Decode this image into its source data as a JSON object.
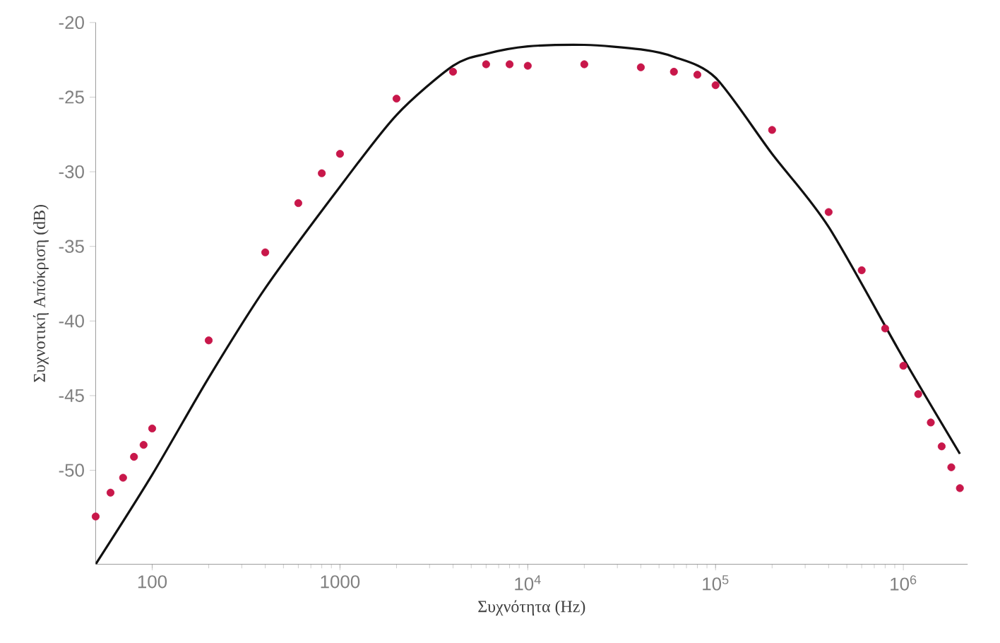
{
  "chart_data": {
    "type": "scatter",
    "xlabel": "Συχνότητα (Hz)",
    "ylabel": "Συχνοτική Απόκριση (dB)",
    "log": "x",
    "xlim": [
      50,
      2200000
    ],
    "ylim": [
      -56.3,
      -20
    ],
    "xticks": [
      100,
      1000,
      {
        "value": 10000,
        "label": "10$^{4}$"
      },
      {
        "value": 100000,
        "label": "10$^{5}$"
      },
      {
        "value": 1000000,
        "label": "10$^{6}$"
      }
    ],
    "yticks": [
      -50,
      -45,
      -40,
      -35,
      -30,
      -25,
      -20
    ],
    "series": [
      {
        "marker": "circle",
        "color": "#c8174a",
        "x": [
          50,
          60,
          70,
          80,
          90,
          100,
          200,
          400,
          600,
          800,
          1000,
          2000,
          4000,
          6000,
          8000,
          10000,
          20000,
          40000,
          60000,
          80000,
          100000,
          200000,
          400000,
          600000,
          800000,
          1000000,
          1200000,
          1400000,
          1600000,
          1800000,
          2000000
        ],
        "values": [
          -53.1,
          -51.5,
          -50.5,
          -49.1,
          -48.3,
          -47.2,
          -41.3,
          -35.4,
          -32.1,
          -30.1,
          -28.8,
          -25.1,
          -23.3,
          -22.8,
          -22.8,
          -22.9,
          -22.8,
          -23.0,
          -23.3,
          -23.5,
          -24.2,
          -27.2,
          -32.7,
          -36.6,
          -40.5,
          -43.0,
          -44.9,
          -46.8,
          -48.4,
          -49.8,
          -51.2
        ]
      },
      {
        "type": "line",
        "marker": "none",
        "line_style": "solid",
        "color": "#111111",
        "x": [
          50,
          100,
          200,
          400,
          1000,
          2000,
          4000,
          6000,
          10000,
          20000,
          40000,
          60000,
          100000,
          200000,
          400000,
          1000000,
          2000000
        ],
        "values": [
          -56.3,
          -50.3,
          -43.8,
          -37.8,
          -31.0,
          -26.2,
          -22.9,
          -22.1,
          -21.6,
          -21.5,
          -21.8,
          -22.3,
          -23.7,
          -28.8,
          -33.7,
          -42.5,
          -48.9
        ]
      }
    ]
  }
}
